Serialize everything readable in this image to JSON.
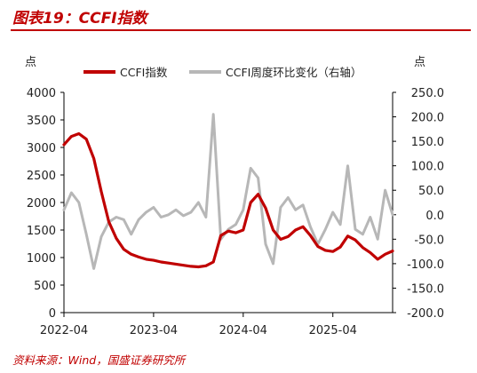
{
  "header": {
    "title": "图表19：CCFI指数"
  },
  "footer": {
    "source": "资料来源：Wind，国盛证券研究所"
  },
  "chart_data": {
    "type": "line",
    "left_axis_unit": "点",
    "right_axis_unit": "点",
    "x_tick_labels": [
      "2022-04",
      "2023-04",
      "2024-04",
      "2025-04"
    ],
    "x_range": [
      "2022-04",
      "2025-12"
    ],
    "left_ylim": [
      0,
      4000
    ],
    "left_yticks": [
      0,
      500,
      1000,
      1500,
      2000,
      2500,
      3000,
      3500,
      4000
    ],
    "right_ylim": [
      -200,
      250
    ],
    "right_yticks": [
      -200,
      -150,
      -100,
      -50,
      0,
      50,
      100,
      150,
      200,
      250
    ],
    "right_ytick_labels": [
      "-200.0",
      "-150.0",
      "-100.0",
      "-50.0",
      "0.0",
      "50.0",
      "100.0",
      "150.0",
      "200.0",
      "250.0"
    ],
    "legend_position": "top",
    "grid": false,
    "series": [
      {
        "name": "CCFI指数",
        "axis": "left",
        "color": "#c00000",
        "x": [
          "2022-04",
          "2022-05",
          "2022-06",
          "2022-07",
          "2022-08",
          "2022-09",
          "2022-10",
          "2022-11",
          "2022-12",
          "2023-01",
          "2023-02",
          "2023-03",
          "2023-04",
          "2023-05",
          "2023-06",
          "2023-07",
          "2023-08",
          "2023-09",
          "2023-10",
          "2023-11",
          "2023-12",
          "2024-01",
          "2024-02",
          "2024-03",
          "2024-04",
          "2024-05",
          "2024-06",
          "2024-07",
          "2024-08",
          "2024-09",
          "2024-10",
          "2024-11",
          "2024-12",
          "2025-01",
          "2025-02",
          "2025-03",
          "2025-04",
          "2025-05",
          "2025-06",
          "2025-07",
          "2025-08",
          "2025-09",
          "2025-10",
          "2025-11",
          "2025-12"
        ],
        "values": [
          3050,
          3200,
          3250,
          3150,
          2800,
          2200,
          1650,
          1350,
          1150,
          1060,
          1010,
          970,
          950,
          920,
          900,
          880,
          860,
          840,
          830,
          850,
          920,
          1400,
          1480,
          1450,
          1500,
          2000,
          2150,
          1900,
          1500,
          1330,
          1380,
          1500,
          1560,
          1400,
          1200,
          1130,
          1110,
          1190,
          1390,
          1320,
          1180,
          1090,
          970,
          1060,
          1120
        ]
      },
      {
        "name": "CCFI周度环比变化（右轴）",
        "axis": "right",
        "color": "#b7b7b7",
        "x": [
          "2022-04",
          "2022-05",
          "2022-06",
          "2022-07",
          "2022-08",
          "2022-09",
          "2022-10",
          "2022-11",
          "2022-12",
          "2023-01",
          "2023-02",
          "2023-03",
          "2023-04",
          "2023-05",
          "2023-06",
          "2023-07",
          "2023-08",
          "2023-09",
          "2023-10",
          "2023-11",
          "2023-12",
          "2024-01",
          "2024-02",
          "2024-03",
          "2024-04",
          "2024-05",
          "2024-06",
          "2024-07",
          "2024-08",
          "2024-09",
          "2024-10",
          "2024-11",
          "2024-12",
          "2025-01",
          "2025-02",
          "2025-03",
          "2025-04",
          "2025-05",
          "2025-06",
          "2025-07",
          "2025-08",
          "2025-09",
          "2025-10",
          "2025-11",
          "2025-12"
        ],
        "values": [
          10,
          45,
          25,
          -40,
          -110,
          -45,
          -15,
          -5,
          -10,
          -40,
          -10,
          5,
          15,
          -5,
          0,
          10,
          -2,
          5,
          25,
          -5,
          205,
          -50,
          -30,
          -20,
          10,
          95,
          75,
          -60,
          -100,
          15,
          35,
          10,
          20,
          -25,
          -60,
          -30,
          5,
          -20,
          100,
          -30,
          -40,
          -5,
          -50,
          50,
          0
        ]
      }
    ]
  }
}
